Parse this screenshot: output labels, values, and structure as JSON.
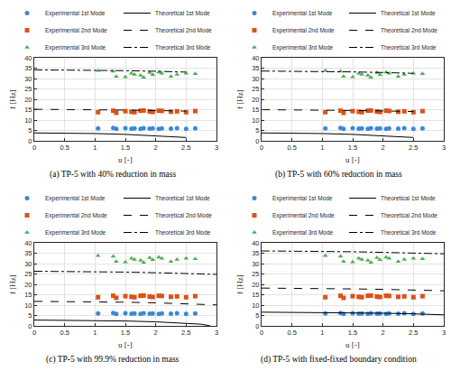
{
  "chart_data": [
    {
      "type": "scatter",
      "title": "(a) TP-5 with 40% reduction in mass",
      "x_label": "u [-]",
      "y_label": "f [Hz]",
      "xlim": [
        0,
        3
      ],
      "xticks": [
        0,
        0.5,
        1,
        1.5,
        2,
        2.5,
        3
      ],
      "ylim": [
        0,
        40
      ],
      "yticks": [
        0,
        5,
        10,
        15,
        20,
        25,
        30,
        35,
        40
      ],
      "grid": true,
      "legend": "top",
      "series": [
        {
          "name": "Experimental 1st Mode",
          "type": "scatter",
          "color": "#3a88d6",
          "marker": "circle",
          "x": [
            1.05,
            1.3,
            1.35,
            1.5,
            1.6,
            1.65,
            1.75,
            1.8,
            1.9,
            1.95,
            2.05,
            2.1,
            2.25,
            2.35,
            2.5,
            2.65
          ],
          "values": [
            6.0,
            6.2,
            5.8,
            6.1,
            5.9,
            6.0,
            5.8,
            6.1,
            5.9,
            6.0,
            5.8,
            6.0,
            5.9,
            6.1,
            5.8,
            6.0
          ]
        },
        {
          "name": "Experimental 2nd Mode",
          "type": "scatter",
          "color": "#d95319",
          "marker": "square",
          "x": [
            1.05,
            1.3,
            1.35,
            1.5,
            1.6,
            1.65,
            1.75,
            1.8,
            1.9,
            1.95,
            2.05,
            2.1,
            2.25,
            2.35,
            2.5,
            2.65
          ],
          "values": [
            13.8,
            14.5,
            13.5,
            14.3,
            14.0,
            13.8,
            14.5,
            14.6,
            14.1,
            13.9,
            14.5,
            14.4,
            14.0,
            14.2,
            13.8,
            14.3
          ]
        },
        {
          "name": "Experimental 3rd Mode",
          "type": "scatter",
          "color": "#4caf50",
          "marker": "triangle-up",
          "x": [
            1.05,
            1.3,
            1.35,
            1.5,
            1.6,
            1.65,
            1.75,
            1.8,
            1.9,
            1.95,
            2.05,
            2.1,
            2.25,
            2.35,
            2.5,
            2.65
          ],
          "values": [
            33.8,
            33.5,
            31.0,
            30.8,
            32.5,
            32.0,
            31.5,
            30.5,
            32.8,
            31.8,
            33.0,
            32.5,
            31.0,
            32.0,
            32.5,
            32.3
          ]
        },
        {
          "name": "Theoretical 1st Mode",
          "type": "line",
          "color": "#000000",
          "line_style": "solid",
          "x": [
            0,
            0.5,
            1,
            1.5,
            2,
            2.25,
            2.5
          ],
          "values": [
            3.8,
            3.7,
            3.5,
            3.1,
            2.5,
            2.1,
            1.6
          ]
        },
        {
          "name": "Theoretical 2nd Mode",
          "type": "line",
          "color": "#000000",
          "line_style": "dash",
          "x": [
            0,
            0.5,
            1,
            1.5,
            2,
            2.25,
            2.5
          ],
          "values": [
            15.2,
            15.15,
            15.0,
            14.8,
            14.6,
            14.45,
            14.3
          ]
        },
        {
          "name": "Theoretical 3rd Mode",
          "type": "line",
          "color": "#000000",
          "line_style": "dashdot",
          "x": [
            0,
            0.5,
            1,
            1.5,
            2,
            2.25,
            2.5
          ],
          "values": [
            34.2,
            34.15,
            34.0,
            33.8,
            33.5,
            33.3,
            33.1
          ]
        }
      ]
    },
    {
      "type": "scatter",
      "title": "(b) TP-5 with 60% reduction in mass",
      "x_label": "u [-]",
      "y_label": "f [Hz]",
      "xlim": [
        0,
        3
      ],
      "xticks": [
        0,
        0.5,
        1,
        1.5,
        2,
        2.5,
        3
      ],
      "ylim": [
        0,
        40
      ],
      "yticks": [
        0,
        5,
        10,
        15,
        20,
        25,
        30,
        35,
        40
      ],
      "grid": true,
      "legend": "top",
      "series": [
        {
          "name": "Experimental 1st Mode",
          "type": "scatter",
          "color": "#3a88d6",
          "marker": "circle",
          "x": [
            1.05,
            1.3,
            1.35,
            1.5,
            1.6,
            1.65,
            1.75,
            1.8,
            1.9,
            1.95,
            2.05,
            2.1,
            2.25,
            2.35,
            2.5,
            2.65
          ],
          "values": [
            6.0,
            6.2,
            5.8,
            6.1,
            5.9,
            6.0,
            5.8,
            6.1,
            5.9,
            6.0,
            5.8,
            6.0,
            5.9,
            6.1,
            5.8,
            6.0
          ]
        },
        {
          "name": "Experimental 2nd Mode",
          "type": "scatter",
          "color": "#d95319",
          "marker": "square",
          "x": [
            1.05,
            1.3,
            1.35,
            1.5,
            1.6,
            1.65,
            1.75,
            1.8,
            1.9,
            1.95,
            2.05,
            2.1,
            2.25,
            2.35,
            2.5,
            2.65
          ],
          "values": [
            13.8,
            14.5,
            13.5,
            14.3,
            14.0,
            13.8,
            14.5,
            14.6,
            14.1,
            13.9,
            14.5,
            14.4,
            14.0,
            14.2,
            13.8,
            14.3
          ]
        },
        {
          "name": "Experimental 3rd Mode",
          "type": "scatter",
          "color": "#4caf50",
          "marker": "triangle-up",
          "x": [
            1.05,
            1.3,
            1.35,
            1.5,
            1.6,
            1.65,
            1.75,
            1.8,
            1.9,
            1.95,
            2.05,
            2.1,
            2.25,
            2.35,
            2.5,
            2.65
          ],
          "values": [
            33.8,
            33.5,
            31.0,
            30.8,
            32.5,
            32.0,
            31.5,
            30.5,
            32.8,
            31.8,
            33.0,
            32.5,
            31.0,
            32.0,
            32.5,
            32.3
          ]
        },
        {
          "name": "Theoretical 1st Mode",
          "type": "line",
          "color": "#000000",
          "line_style": "solid",
          "x": [
            0,
            0.5,
            1,
            1.5,
            2,
            2.25,
            2.5
          ],
          "values": [
            3.8,
            3.7,
            3.5,
            3.1,
            2.5,
            2.1,
            1.6
          ]
        },
        {
          "name": "Theoretical 2nd Mode",
          "type": "line",
          "color": "#000000",
          "line_style": "dash",
          "x": [
            0,
            0.5,
            1,
            1.5,
            2,
            2.25,
            2.5
          ],
          "values": [
            15.0,
            14.95,
            14.8,
            14.6,
            14.4,
            14.25,
            14.1
          ]
        },
        {
          "name": "Theoretical 3rd Mode",
          "type": "line",
          "color": "#000000",
          "line_style": "dashdot",
          "x": [
            0,
            0.5,
            1,
            1.5,
            2,
            2.25,
            2.5
          ],
          "values": [
            33.6,
            33.55,
            33.4,
            33.2,
            32.9,
            32.7,
            32.5
          ]
        }
      ]
    },
    {
      "type": "scatter",
      "title": "(c) TP-5 with 99.9% reduction in mass",
      "x_label": "u [-]",
      "y_label": "f [Hz]",
      "xlim": [
        0,
        3
      ],
      "xticks": [
        0,
        0.5,
        1,
        1.5,
        2,
        2.5,
        3
      ],
      "ylim": [
        0,
        40
      ],
      "yticks": [
        0,
        5,
        10,
        15,
        20,
        25,
        30,
        35,
        40
      ],
      "grid": true,
      "legend": "top",
      "series": [
        {
          "name": "Experimental 1st Mode",
          "type": "scatter",
          "color": "#3a88d6",
          "marker": "circle",
          "x": [
            1.05,
            1.3,
            1.35,
            1.5,
            1.6,
            1.65,
            1.75,
            1.8,
            1.9,
            1.95,
            2.05,
            2.1,
            2.25,
            2.35,
            2.5,
            2.65
          ],
          "values": [
            6.0,
            6.2,
            5.8,
            6.1,
            5.9,
            6.0,
            5.8,
            6.1,
            5.9,
            6.0,
            5.8,
            6.0,
            5.9,
            6.1,
            5.8,
            6.0
          ]
        },
        {
          "name": "Experimental 2nd Mode",
          "type": "scatter",
          "color": "#d95319",
          "marker": "square",
          "x": [
            1.05,
            1.3,
            1.35,
            1.5,
            1.6,
            1.65,
            1.75,
            1.8,
            1.9,
            1.95,
            2.05,
            2.1,
            2.25,
            2.35,
            2.5,
            2.65
          ],
          "values": [
            13.8,
            14.5,
            13.5,
            14.3,
            14.0,
            13.8,
            14.5,
            14.6,
            14.1,
            13.9,
            14.5,
            14.4,
            14.0,
            14.2,
            13.8,
            14.3
          ]
        },
        {
          "name": "Experimental 3rd Mode",
          "type": "scatter",
          "color": "#4caf50",
          "marker": "triangle-up",
          "x": [
            1.05,
            1.3,
            1.35,
            1.5,
            1.6,
            1.65,
            1.75,
            1.8,
            1.9,
            1.95,
            2.05,
            2.1,
            2.25,
            2.35,
            2.5,
            2.65
          ],
          "values": [
            33.8,
            33.5,
            31.0,
            30.8,
            32.5,
            32.0,
            31.5,
            30.5,
            32.8,
            31.8,
            33.0,
            32.5,
            31.0,
            32.0,
            32.5,
            32.3
          ]
        },
        {
          "name": "Theoretical 1st Mode",
          "type": "line",
          "color": "#000000",
          "line_style": "solid",
          "x": [
            0,
            0.5,
            1,
            1.5,
            2,
            2.5,
            2.75,
            2.9
          ],
          "values": [
            2.8,
            2.75,
            2.6,
            2.35,
            1.95,
            1.3,
            0.8,
            0
          ]
        },
        {
          "name": "Theoretical 2nd Mode",
          "type": "line",
          "color": "#000000",
          "line_style": "dash",
          "x": [
            0,
            0.5,
            1,
            1.5,
            2,
            2.5,
            3
          ],
          "values": [
            11.8,
            11.75,
            11.6,
            11.4,
            11.1,
            10.7,
            10.1
          ]
        },
        {
          "name": "Theoretical 3rd Mode",
          "type": "line",
          "color": "#000000",
          "line_style": "dashdot",
          "x": [
            0,
            0.5,
            1,
            1.5,
            2,
            2.5,
            3
          ],
          "values": [
            26.3,
            26.25,
            26.1,
            25.9,
            25.6,
            25.2,
            24.8
          ]
        }
      ]
    },
    {
      "type": "scatter",
      "title": "(d) TP-5 with fixed-fixed boundary condition",
      "x_label": "u [-]",
      "y_label": "f [Hz]",
      "xlim": [
        0,
        3
      ],
      "xticks": [
        0,
        0.5,
        1,
        1.5,
        2,
        2.5,
        3
      ],
      "ylim": [
        0,
        40
      ],
      "yticks": [
        0,
        5,
        10,
        15,
        20,
        25,
        30,
        35,
        40
      ],
      "grid": true,
      "legend": "top",
      "series": [
        {
          "name": "Experimental 1st Mode",
          "type": "scatter",
          "color": "#3a88d6",
          "marker": "circle",
          "x": [
            1.05,
            1.3,
            1.35,
            1.5,
            1.6,
            1.65,
            1.75,
            1.8,
            1.9,
            1.95,
            2.05,
            2.1,
            2.25,
            2.35,
            2.5,
            2.65
          ],
          "values": [
            6.0,
            6.2,
            5.8,
            6.1,
            5.9,
            6.0,
            5.8,
            6.1,
            5.9,
            6.0,
            5.8,
            6.0,
            5.9,
            6.1,
            5.8,
            6.0
          ]
        },
        {
          "name": "Experimental 2nd Mode",
          "type": "scatter",
          "color": "#d95319",
          "marker": "square",
          "x": [
            1.05,
            1.3,
            1.35,
            1.5,
            1.6,
            1.65,
            1.75,
            1.8,
            1.9,
            1.95,
            2.05,
            2.1,
            2.25,
            2.35,
            2.5,
            2.65
          ],
          "values": [
            13.8,
            14.5,
            13.5,
            14.3,
            14.0,
            13.8,
            14.5,
            14.6,
            14.1,
            13.9,
            14.5,
            14.4,
            14.0,
            14.2,
            13.8,
            14.3
          ]
        },
        {
          "name": "Experimental 3rd Mode",
          "type": "scatter",
          "color": "#4caf50",
          "marker": "triangle-up",
          "x": [
            1.05,
            1.3,
            1.35,
            1.5,
            1.6,
            1.65,
            1.75,
            1.8,
            1.9,
            1.95,
            2.05,
            2.1,
            2.25,
            2.35,
            2.5,
            2.65
          ],
          "values": [
            33.8,
            33.5,
            31.0,
            30.8,
            32.5,
            32.0,
            31.5,
            30.5,
            32.8,
            31.8,
            33.0,
            32.5,
            31.0,
            32.0,
            32.5,
            32.3
          ]
        },
        {
          "name": "Theoretical 1st Mode",
          "type": "line",
          "color": "#000000",
          "line_style": "solid",
          "x": [
            0,
            0.5,
            1,
            1.5,
            2,
            2.5,
            3
          ],
          "values": [
            6.6,
            6.55,
            6.45,
            6.3,
            6.1,
            5.8,
            5.3
          ]
        },
        {
          "name": "Theoretical 2nd Mode",
          "type": "line",
          "color": "#000000",
          "line_style": "dash",
          "x": [
            0,
            0.5,
            1,
            1.5,
            2,
            2.5,
            3
          ],
          "values": [
            18.2,
            18.15,
            18.0,
            17.8,
            17.6,
            17.3,
            16.9
          ]
        },
        {
          "name": "Theoretical 3rd Mode",
          "type": "line",
          "color": "#000000",
          "line_style": "dashdot",
          "x": [
            0,
            0.5,
            1,
            1.5,
            2,
            2.5,
            3
          ],
          "values": [
            36.1,
            36.05,
            35.9,
            35.7,
            35.4,
            35.1,
            34.7
          ]
        }
      ]
    }
  ]
}
